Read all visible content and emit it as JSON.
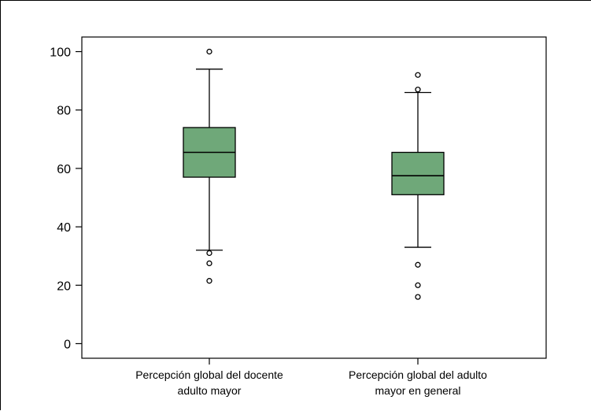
{
  "chart_data": {
    "type": "box",
    "title": "",
    "xlabel": "",
    "ylabel": "",
    "ylim": [
      -5,
      105
    ],
    "yticks": [
      0,
      20,
      40,
      60,
      80,
      100
    ],
    "grid": false,
    "legend": "none",
    "box_color": "#6fa879",
    "categories": [
      {
        "label_lines": [
          "Percepción global del docente",
          "adulto mayor"
        ],
        "whisker_low": 32,
        "q1": 57,
        "median": 65.5,
        "q3": 74,
        "whisker_high": 94,
        "outliers": [
          100,
          31,
          27.5,
          21.5
        ]
      },
      {
        "label_lines": [
          "Percepción global del adulto",
          "mayor en general"
        ],
        "whisker_low": 33,
        "q1": 51,
        "median": 57.5,
        "q3": 65.5,
        "whisker_high": 86,
        "outliers": [
          92,
          87,
          27,
          20,
          16
        ]
      }
    ]
  }
}
